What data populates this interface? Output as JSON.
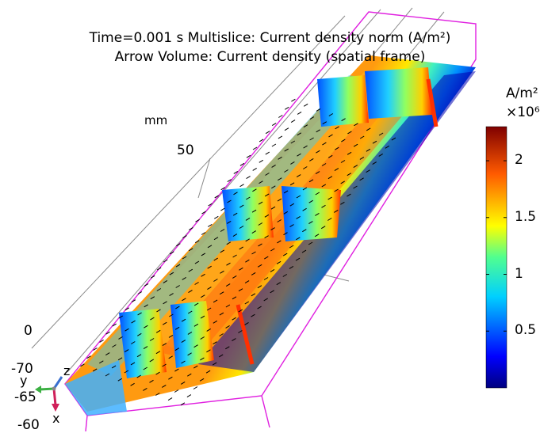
{
  "chart_data": {
    "type": "heatmap",
    "title_line1": "Time=0.001 s   Multislice: Current density norm (A/m²)",
    "title_line2": "Arrow Volume: Current density (spatial frame)",
    "length_unit": "mm",
    "axis_ticks": {
      "z": [
        "0",
        "50"
      ],
      "y": [
        "-70",
        "-65",
        "-60"
      ]
    },
    "triad_labels": {
      "z": "z",
      "y": "y",
      "x": "x"
    },
    "colorbar": {
      "unit": "A/m²",
      "multiplier": "×10⁶",
      "colormap": "rainbow",
      "range": [
        0,
        2.3
      ],
      "ticks": [
        0.5,
        1,
        1.5,
        2
      ],
      "tick_labels": [
        "0.5",
        "1",
        "1.5",
        "2"
      ]
    }
  }
}
